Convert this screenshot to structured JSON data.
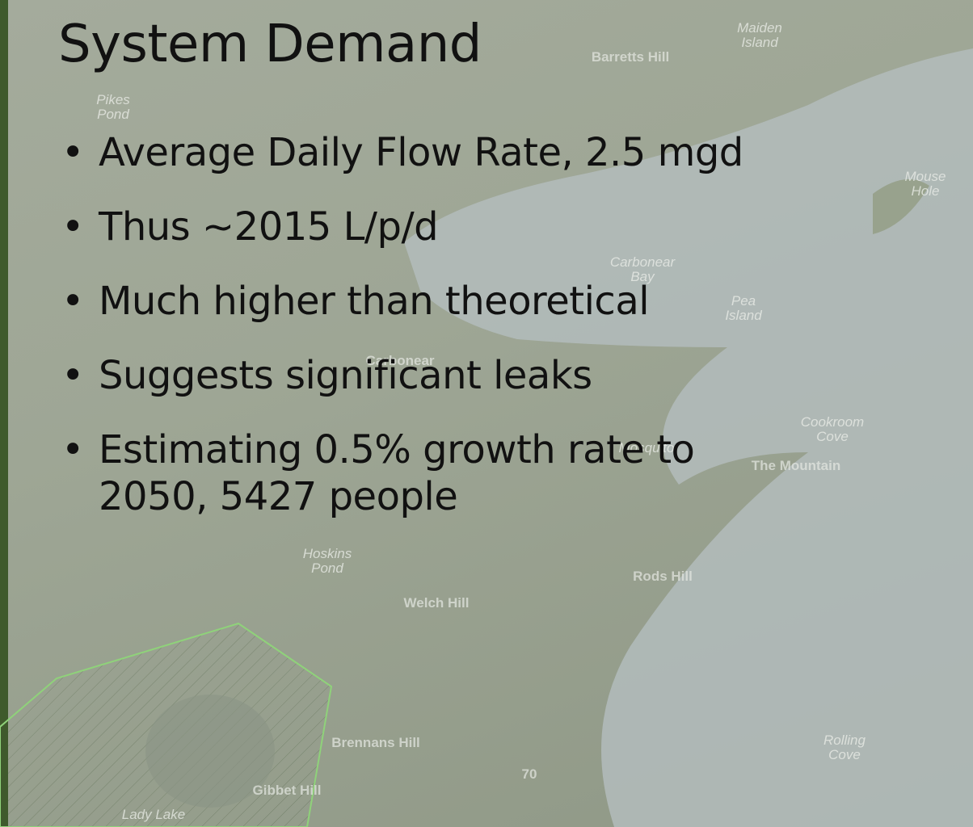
{
  "slide": {
    "title": "System Demand",
    "bullets": [
      "Average Daily Flow Rate, 2.5 mgd",
      "Thus ~2015 L/p/d",
      "Much higher than theoretical",
      "Suggests significant leaks",
      "Estimating 0.5% growth rate to 2050, 5427 people"
    ],
    "map_labels": [
      "Maiden Island",
      "Barretts Hill",
      "Pikes Pond",
      "Mouse Hole",
      "Carbonear Bay",
      "Pea Island",
      "Carbonear",
      "Cookroom Cove",
      "The Mountain",
      "Mosquito",
      "Hoskins Pond",
      "Rods Hill",
      "Welch Hill",
      "Brennans Hill",
      "Rolling Cove",
      "Gibbet Hill",
      "Lady Lake",
      "70"
    ]
  }
}
